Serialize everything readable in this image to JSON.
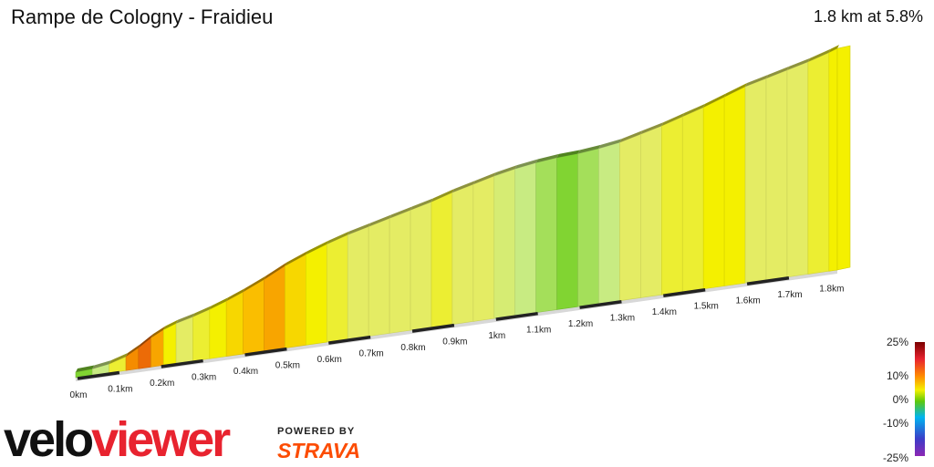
{
  "header": {
    "title": "Rampe de Cologny - Fraidieu",
    "summary": "1.8 km at 5.8%"
  },
  "branding": {
    "logo_part1": "velo",
    "logo_part2": "viewer",
    "powered_by": "POWERED BY",
    "strava": "STRAVA"
  },
  "legend": {
    "labels": [
      "25%",
      "10%",
      "0%",
      "-10%",
      "-25%"
    ],
    "colors": [
      "#7a0000",
      "#e8232f",
      "#ff8c00",
      "#f4f000",
      "#5dc80a",
      "#00b4f0",
      "#3c3cc8",
      "#8c28b4"
    ]
  },
  "chart_data": {
    "type": "area",
    "title": "Rampe de Cologny - Fraidieu",
    "xlabel": "",
    "ylabel": "",
    "x_tick_labels": [
      "0km",
      "0.1km",
      "0.2km",
      "0.3km",
      "0.4km",
      "0.5km",
      "0.6km",
      "0.7km",
      "0.8km",
      "0.9km",
      "1km",
      "1.1km",
      "1.2km",
      "1.3km",
      "1.4km",
      "1.5km",
      "1.6km",
      "1.7km",
      "1.8km"
    ],
    "x_range_km": [
      0,
      1.82
    ],
    "distance_km": [
      0,
      0.04,
      0.08,
      0.12,
      0.15,
      0.18,
      0.21,
      0.24,
      0.28,
      0.32,
      0.36,
      0.4,
      0.45,
      0.5,
      0.55,
      0.6,
      0.65,
      0.7,
      0.75,
      0.8,
      0.85,
      0.9,
      0.95,
      1.0,
      1.05,
      1.1,
      1.15,
      1.2,
      1.25,
      1.3,
      1.35,
      1.4,
      1.45,
      1.5,
      1.55,
      1.6,
      1.65,
      1.7,
      1.75,
      1.8,
      1.82
    ],
    "gradient_percent": [
      1,
      3,
      6,
      11,
      13,
      10,
      7,
      5,
      6,
      7,
      8,
      9,
      10,
      8,
      7,
      6,
      5,
      5,
      5,
      5,
      6,
      5,
      5,
      4,
      3,
      2,
      1,
      2,
      3,
      5,
      5,
      6,
      6,
      7,
      7,
      5,
      5,
      5,
      6,
      7
    ]
  }
}
